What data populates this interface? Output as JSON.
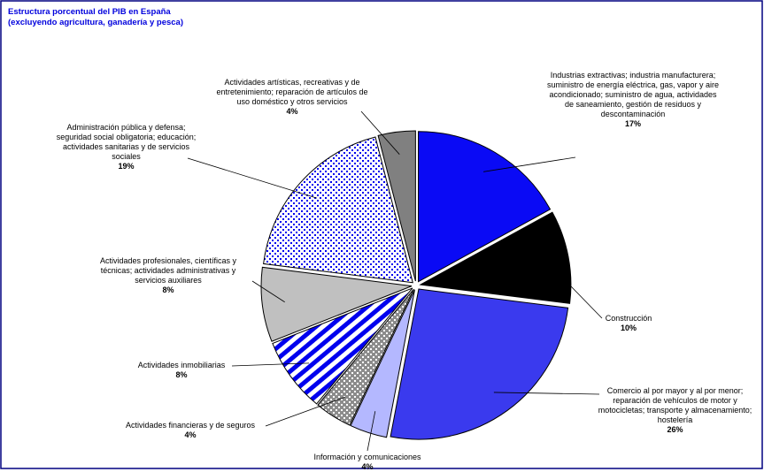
{
  "chart_data": {
    "type": "pie",
    "title": "Estructura porcentual del PIB en España",
    "subtitle": "(excluyendo agricultura, ganadería y pesca)",
    "categories": [
      "Industrias extractivas; industria manufacturera; suministro de energía eléctrica, gas, vapor y aire acondicionado; suministro de agua, actividades de saneamiento, gestión de residuos y descontaminación",
      "Construcción",
      "Comercio al por mayor y al por menor; reparación de vehículos de motor y motocicletas; transporte y almacenamiento; hostelería",
      "Información y comunicaciones",
      "Actividades financieras y de seguros",
      "Actividades inmobiliarias",
      "Actividades profesionales, científicas y técnicas; actividades administrativas y servicios auxiliares",
      "Administración pública y defensa; seguridad social obligatoria; educación; actividades sanitarias y de servicios sociales",
      "Actividades artísticas, recreativas y de entretenimiento; reparación de artículos de uso doméstico y otros servicios"
    ],
    "values": [
      17,
      10,
      26,
      4,
      4,
      8,
      8,
      19,
      4
    ],
    "value_labels": [
      "17%",
      "10%",
      "26%",
      "4%",
      "4%",
      "8%",
      "8%",
      "19%",
      "4%"
    ],
    "colors": [
      "#0a0af5",
      "#000000",
      "#3a3aee",
      "#b4b8ff",
      "#8c8c8c",
      "#0000ee",
      "#c0c0c0",
      "#0000ee",
      "#808080"
    ],
    "patterns": [
      "solid",
      "solid",
      "solid",
      "solid",
      "dots",
      "stripes",
      "solid",
      "dots",
      "solid"
    ]
  }
}
